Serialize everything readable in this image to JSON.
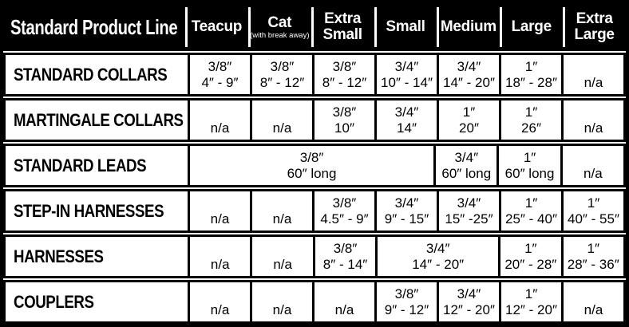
{
  "colors": {
    "header_bg": "#000000",
    "header_text": "#ffffff",
    "body_bg": "#ffffff",
    "body_text": "#000000",
    "border": "#000000"
  },
  "table": {
    "title": "Standard Product Line",
    "columns": [
      {
        "label": "Teacup",
        "sub": ""
      },
      {
        "label": "Cat",
        "sub": "(with break away)"
      },
      {
        "label": "Extra Small",
        "sub": ""
      },
      {
        "label": "Small",
        "sub": ""
      },
      {
        "label": "Medium",
        "sub": ""
      },
      {
        "label": "Large",
        "sub": ""
      },
      {
        "label": "Extra Large",
        "sub": ""
      }
    ],
    "rows": [
      {
        "product": "STANDARD COLLARS",
        "cells": [
          {
            "span": 1,
            "line1": "3/8″",
            "line2": "4″ - 9″"
          },
          {
            "span": 1,
            "line1": "3/8″",
            "line2": "8″ - 12″"
          },
          {
            "span": 1,
            "line1": "3/8″",
            "line2": "8″ - 12″"
          },
          {
            "span": 1,
            "line1": "3/4″",
            "line2": "10″ - 14″"
          },
          {
            "span": 1,
            "line1": "3/4″",
            "line2": "14″ - 20″"
          },
          {
            "span": 1,
            "line1": "1″",
            "line2": "18″ - 28″"
          },
          {
            "span": 1,
            "line1": "",
            "line2": "n/a"
          }
        ]
      },
      {
        "product": "MARTINGALE COLLARS",
        "cells": [
          {
            "span": 1,
            "line1": "",
            "line2": "n/a"
          },
          {
            "span": 1,
            "line1": "",
            "line2": "n/a"
          },
          {
            "span": 1,
            "line1": "3/8″",
            "line2": "10″"
          },
          {
            "span": 1,
            "line1": "3/4″",
            "line2": "14″"
          },
          {
            "span": 1,
            "line1": "1″",
            "line2": "20″"
          },
          {
            "span": 1,
            "line1": "1″",
            "line2": "26″"
          },
          {
            "span": 1,
            "line1": "",
            "line2": "n/a"
          }
        ]
      },
      {
        "product": "STANDARD LEADS",
        "cells": [
          {
            "span": 4,
            "line1": "3/8″",
            "line2": "60″ long"
          },
          {
            "span": 1,
            "line1": "3/4″",
            "line2": "60″ long"
          },
          {
            "span": 1,
            "line1": "1″",
            "line2": "60″ long"
          },
          {
            "span": 1,
            "line1": "",
            "line2": "n/a"
          }
        ]
      },
      {
        "product": "STEP-IN HARNESSES",
        "cells": [
          {
            "span": 1,
            "line1": "",
            "line2": "n/a"
          },
          {
            "span": 1,
            "line1": "",
            "line2": "n/a"
          },
          {
            "span": 1,
            "line1": "3/8″",
            "line2": "4.5″ - 9″"
          },
          {
            "span": 1,
            "line1": "3/4″",
            "line2": "9″ - 15″"
          },
          {
            "span": 1,
            "line1": "3/4″",
            "line2": "15″ -25″"
          },
          {
            "span": 1,
            "line1": "1″",
            "line2": "25″ - 40″"
          },
          {
            "span": 1,
            "line1": "1″",
            "line2": "40″ - 55″"
          }
        ]
      },
      {
        "product": "HARNESSES",
        "cells": [
          {
            "span": 1,
            "line1": "",
            "line2": "n/a"
          },
          {
            "span": 1,
            "line1": "",
            "line2": "n/a"
          },
          {
            "span": 1,
            "line1": "3/8″",
            "line2": "8″ - 14″"
          },
          {
            "span": 2,
            "line1": "3/4″",
            "line2": "14″ - 20″"
          },
          {
            "span": 1,
            "line1": "1″",
            "line2": "20″ - 28″"
          },
          {
            "span": 1,
            "line1": "1″",
            "line2": "28″ - 36″"
          }
        ]
      },
      {
        "product": "COUPLERS",
        "cells": [
          {
            "span": 1,
            "line1": "",
            "line2": "n/a"
          },
          {
            "span": 1,
            "line1": "",
            "line2": "n/a"
          },
          {
            "span": 1,
            "line1": "",
            "line2": "n/a"
          },
          {
            "span": 1,
            "line1": "3/8″",
            "line2": "9″ - 12″"
          },
          {
            "span": 1,
            "line1": "3/4″",
            "line2": "12″ - 20″"
          },
          {
            "span": 1,
            "line1": "1″",
            "line2": "12″ - 20″"
          },
          {
            "span": 1,
            "line1": "",
            "line2": "n/a"
          }
        ]
      }
    ]
  },
  "chart_data": {
    "type": "table",
    "title": "Standard Product Line",
    "columns": [
      "Teacup",
      "Cat (with break away)",
      "Extra Small",
      "Small",
      "Medium",
      "Large",
      "Extra Large"
    ],
    "rows": [
      {
        "product": "STANDARD COLLARS",
        "values": [
          "3/8″ 4″ - 9″",
          "3/8″ 8″ - 12″",
          "3/8″ 8″ - 12″",
          "3/4″ 10″ - 14″",
          "3/4″ 14″ - 20″",
          "1″ 18″ - 28″",
          "n/a"
        ]
      },
      {
        "product": "MARTINGALE COLLARS",
        "values": [
          "n/a",
          "n/a",
          "3/8″ 10″",
          "3/4″ 14″",
          "1″ 20″",
          "1″ 26″",
          "n/a"
        ]
      },
      {
        "product": "STANDARD LEADS",
        "values": [
          "3/8″ 60″ long (spans Teacup–Small)",
          "",
          "",
          "",
          "3/4″ 60″ long",
          "1″ 60″ long",
          "n/a"
        ]
      },
      {
        "product": "STEP-IN HARNESSES",
        "values": [
          "n/a",
          "n/a",
          "3/8″ 4.5″ - 9″",
          "3/4″ 9″ - 15″",
          "3/4″ 15″ -25″",
          "1″ 25″ - 40″",
          "1″ 40″ - 55″"
        ]
      },
      {
        "product": "HARNESSES",
        "values": [
          "n/a",
          "n/a",
          "3/8″ 8″ - 14″",
          "3/4″ 14″ - 20″ (spans Small–Medium)",
          "",
          "1″ 20″ - 28″",
          "1″ 28″ - 36″"
        ]
      },
      {
        "product": "COUPLERS",
        "values": [
          "n/a",
          "n/a",
          "n/a",
          "3/8″ 9″ - 12″",
          "3/4″ 12″ - 20″",
          "1″ 12″ - 20″",
          "n/a"
        ]
      }
    ]
  }
}
